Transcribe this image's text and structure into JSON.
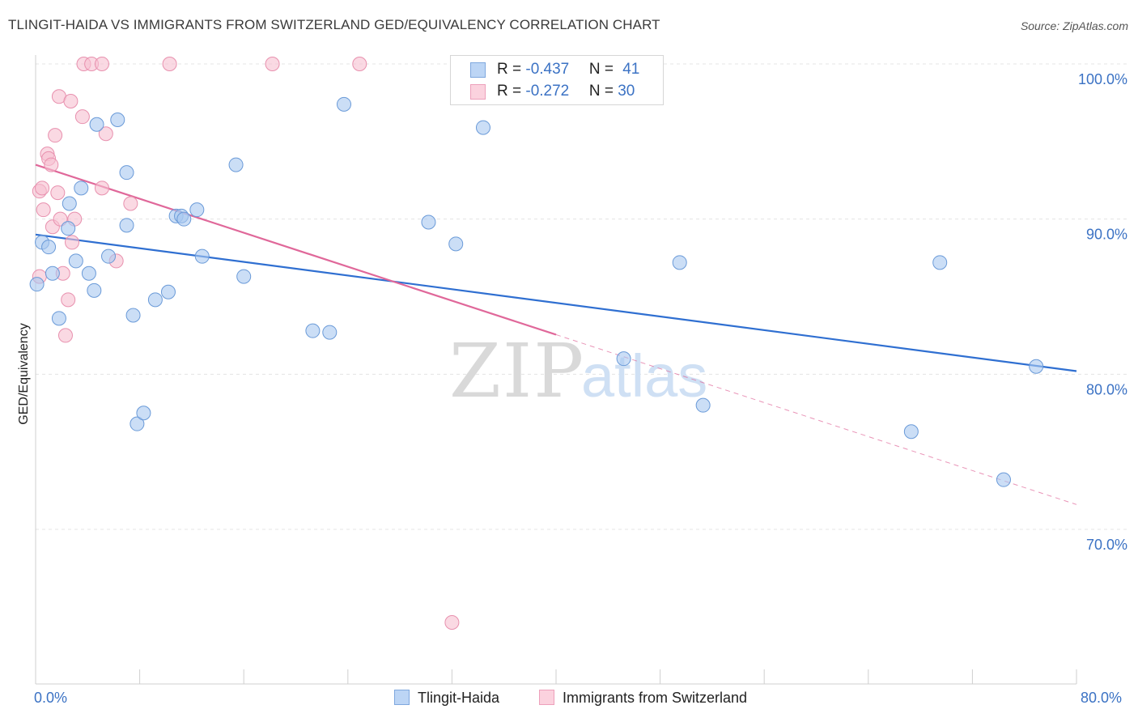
{
  "title": "TLINGIT-HAIDA VS IMMIGRANTS FROM SWITZERLAND GED/EQUIVALENCY CORRELATION CHART",
  "source": "Source: ZipAtlas.com",
  "watermark": {
    "zip": "ZIP",
    "atlas": "atlas"
  },
  "legend": {
    "rows": [
      {
        "r_label": "R = ",
        "r_value": "-0.437",
        "n_label": "N = ",
        "n_value": "41"
      },
      {
        "r_label": "R = ",
        "r_value": "-0.272",
        "n_label": "N = ",
        "n_value": "30"
      }
    ]
  },
  "x_axis": {
    "min_label": "0.0%",
    "max_label": "80.0%"
  },
  "chart_data": {
    "type": "scatter",
    "title": "TLINGIT-HAIDA VS IMMIGRANTS FROM SWITZERLAND GED/EQUIVALENCY CORRELATION CHART",
    "xlabel": "",
    "ylabel": "GED/Equivalency",
    "xlim": [
      0,
      80
    ],
    "ylim": [
      60,
      102
    ],
    "y_ticks": [
      70,
      80,
      90,
      100
    ],
    "y_tick_labels": [
      "70.0%",
      "80.0%",
      "90.0%",
      "100.0%"
    ],
    "grid": true,
    "legend_position": "bottom",
    "series": [
      {
        "name": "Tlingit-Haida",
        "color": "#a9c8f0",
        "stroke": "#6a9ad8",
        "trend_color": "#2f6fd1",
        "trend": {
          "x0": 0,
          "y0": 89.0,
          "x1": 80,
          "y1": 80.2,
          "solid_until": 80
        },
        "points": [
          [
            0.1,
            85.8
          ],
          [
            0.5,
            88.5
          ],
          [
            1.0,
            88.2
          ],
          [
            1.3,
            86.5
          ],
          [
            1.8,
            83.6
          ],
          [
            2.5,
            89.4
          ],
          [
            2.6,
            91.0
          ],
          [
            3.1,
            87.3
          ],
          [
            3.5,
            92.0
          ],
          [
            4.1,
            86.5
          ],
          [
            4.5,
            85.4
          ],
          [
            4.7,
            96.1
          ],
          [
            5.6,
            87.6
          ],
          [
            6.3,
            96.4
          ],
          [
            7.0,
            93.0
          ],
          [
            7.0,
            89.6
          ],
          [
            7.5,
            83.8
          ],
          [
            7.8,
            76.8
          ],
          [
            8.3,
            77.5
          ],
          [
            9.2,
            84.8
          ],
          [
            10.2,
            85.3
          ],
          [
            10.8,
            90.2
          ],
          [
            11.2,
            90.2
          ],
          [
            11.4,
            90.0
          ],
          [
            12.4,
            90.6
          ],
          [
            12.8,
            87.6
          ],
          [
            15.4,
            93.5
          ],
          [
            16.0,
            86.3
          ],
          [
            21.3,
            82.8
          ],
          [
            22.6,
            82.7
          ],
          [
            23.7,
            97.4
          ],
          [
            30.2,
            89.8
          ],
          [
            32.3,
            88.4
          ],
          [
            34.4,
            95.9
          ],
          [
            45.2,
            81.0
          ],
          [
            49.5,
            87.2
          ],
          [
            51.3,
            78.0
          ],
          [
            67.3,
            76.3
          ],
          [
            69.5,
            87.2
          ],
          [
            74.4,
            73.2
          ],
          [
            76.9,
            80.5
          ]
        ]
      },
      {
        "name": "Immigrants from Switzerland",
        "color": "#f7c0d0",
        "stroke": "#e890ae",
        "trend_color": "#e0689a",
        "trend": {
          "x0": 0,
          "y0": 93.5,
          "x1": 80,
          "y1": 71.6,
          "solid_until": 40
        },
        "points": [
          [
            0.3,
            86.3
          ],
          [
            0.3,
            91.8
          ],
          [
            0.5,
            92.0
          ],
          [
            0.6,
            90.6
          ],
          [
            0.9,
            94.2
          ],
          [
            1.0,
            93.9
          ],
          [
            1.2,
            93.5
          ],
          [
            1.3,
            89.5
          ],
          [
            1.5,
            95.4
          ],
          [
            1.7,
            91.7
          ],
          [
            1.8,
            97.9
          ],
          [
            1.9,
            90.0
          ],
          [
            2.1,
            86.5
          ],
          [
            2.3,
            82.5
          ],
          [
            2.5,
            84.8
          ],
          [
            2.7,
            97.6
          ],
          [
            2.8,
            88.5
          ],
          [
            3.0,
            90.0
          ],
          [
            3.6,
            96.6
          ],
          [
            3.7,
            100.0
          ],
          [
            4.3,
            100.0
          ],
          [
            5.1,
            100.0
          ],
          [
            5.1,
            92.0
          ],
          [
            5.4,
            95.5
          ],
          [
            6.2,
            87.3
          ],
          [
            7.3,
            91.0
          ],
          [
            10.3,
            100.0
          ],
          [
            18.2,
            100.0
          ],
          [
            24.9,
            100.0
          ],
          [
            32.0,
            64.0
          ]
        ]
      }
    ]
  }
}
